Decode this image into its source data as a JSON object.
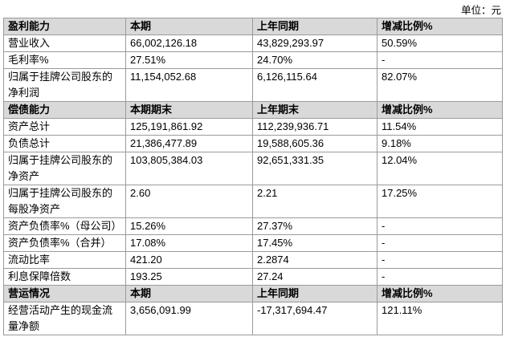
{
  "unit": "单位：元",
  "sections": [
    {
      "header": [
        "盈利能力",
        "本期",
        "上年同期",
        "增减比例%"
      ],
      "rows": [
        [
          "营业收入",
          "66,002,126.18",
          "43,829,293.97",
          "50.59%"
        ],
        [
          "毛利率%",
          "27.51%",
          "24.70%",
          "-"
        ],
        [
          "归属于挂牌公司股东的净利润",
          "11,154,052.68",
          "6,126,115.64",
          "82.07%"
        ]
      ]
    },
    {
      "header": [
        "偿债能力",
        "本期期末",
        "上年期末",
        "增减比例%"
      ],
      "rows": [
        [
          "资产总计",
          "125,191,861.92",
          "112,239,936.71",
          "11.54%"
        ],
        [
          "负债总计",
          "21,386,477.89",
          "19,588,605.36",
          "9.18%"
        ],
        [
          "归属于挂牌公司股东的净资产",
          "103,805,384.03",
          "92,651,331.35",
          "12.04%"
        ],
        [
          "归属于挂牌公司股东的每股净资产",
          "2.60",
          "2.21",
          "17.25%"
        ],
        [
          "资产负债率%（母公司）",
          "15.26%",
          "27.37%",
          "-"
        ],
        [
          "资产负债率%（合并）",
          "17.08%",
          "17.45%",
          "-"
        ],
        [
          "流动比率",
          "421.20",
          "2.2874",
          "-"
        ],
        [
          "利息保障倍数",
          "193.25",
          "27.24",
          "-"
        ]
      ]
    },
    {
      "header": [
        "营运情况",
        "本期",
        "上年同期",
        "增减比例%"
      ],
      "rows": [
        [
          "经营活动产生的现金流量净额",
          "3,656,091.99",
          "-17,317,694.47",
          "121.11%"
        ]
      ]
    }
  ]
}
